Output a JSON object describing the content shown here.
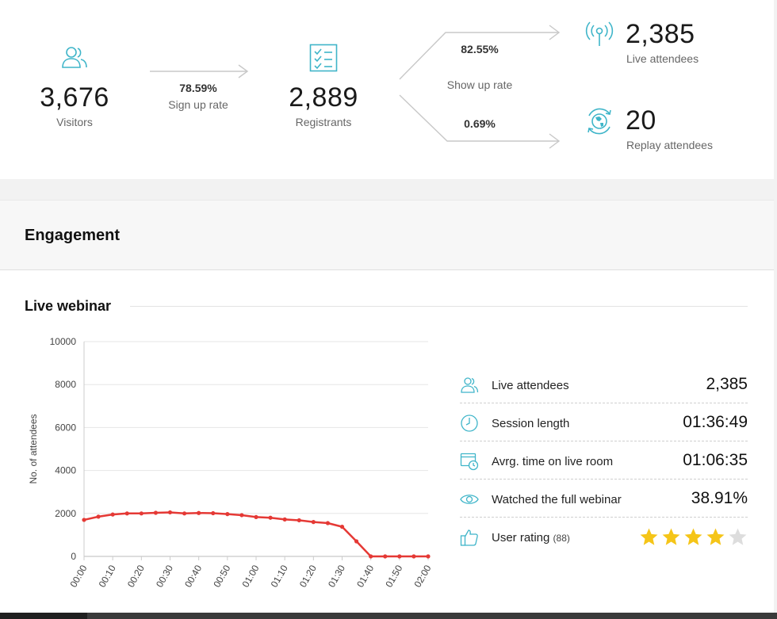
{
  "funnel": {
    "visitors": {
      "value": "3,676",
      "label": "Visitors",
      "icon": "users-icon"
    },
    "signup": {
      "rate": "78.59%",
      "label": "Sign up rate"
    },
    "registrants": {
      "value": "2,889",
      "label": "Registrants",
      "icon": "checklist-icon"
    },
    "show_up": {
      "label": "Show up rate",
      "live_rate": "82.55%",
      "replay_rate": "0.69%"
    },
    "live": {
      "value": "2,385",
      "label": "Live attendees",
      "icon": "broadcast-icon"
    },
    "replay": {
      "value": "20",
      "label": "Replay attendees",
      "icon": "replay-globe-icon"
    }
  },
  "engagement": {
    "title": "Engagement"
  },
  "live_webinar": {
    "title": "Live webinar",
    "stats": [
      {
        "label": "Live attendees",
        "value": "2,385",
        "icon": "users-icon"
      },
      {
        "label": "Session length",
        "value": "01:36:49",
        "icon": "clock-icon"
      },
      {
        "label": "Avrg. time on live room",
        "value": "01:06:35",
        "icon": "calendar-clock-icon"
      },
      {
        "label": "Watched the full webinar",
        "value": "38.91%",
        "icon": "eye-icon"
      },
      {
        "label": "User rating",
        "sub": "(88)",
        "icon": "thumbs-up-icon",
        "rating": 4,
        "max": 5
      }
    ]
  },
  "colors": {
    "accent": "#3fb5c9",
    "line": "#e53935",
    "star_on": "#f5c518",
    "star_off": "#dddddd"
  },
  "chart_data": {
    "type": "line",
    "ylabel": "No. of attendees",
    "xlabel": "",
    "ylim": [
      0,
      10000
    ],
    "yticks": [
      0,
      2000,
      4000,
      6000,
      8000,
      10000
    ],
    "xticks": [
      "00:00",
      "00:10",
      "00:20",
      "00:30",
      "00:40",
      "00:50",
      "01:00",
      "01:10",
      "01:20",
      "01:30",
      "01:40",
      "01:50",
      "02:00"
    ],
    "grid": true,
    "series": [
      {
        "x": [
          "00:00",
          "00:05",
          "00:10",
          "00:15",
          "00:20",
          "00:25",
          "00:30",
          "00:35",
          "00:40",
          "00:45",
          "00:50",
          "00:55",
          "01:00",
          "01:05",
          "01:10",
          "01:15",
          "01:20",
          "01:25",
          "01:30",
          "01:35",
          "01:40",
          "01:45",
          "01:50",
          "01:55",
          "02:00"
        ],
        "values": [
          1700,
          1850,
          1950,
          2000,
          2000,
          2030,
          2050,
          2000,
          2020,
          2010,
          1970,
          1920,
          1830,
          1800,
          1720,
          1680,
          1600,
          1550,
          1380,
          700,
          0,
          0,
          0,
          0,
          0
        ]
      }
    ]
  }
}
